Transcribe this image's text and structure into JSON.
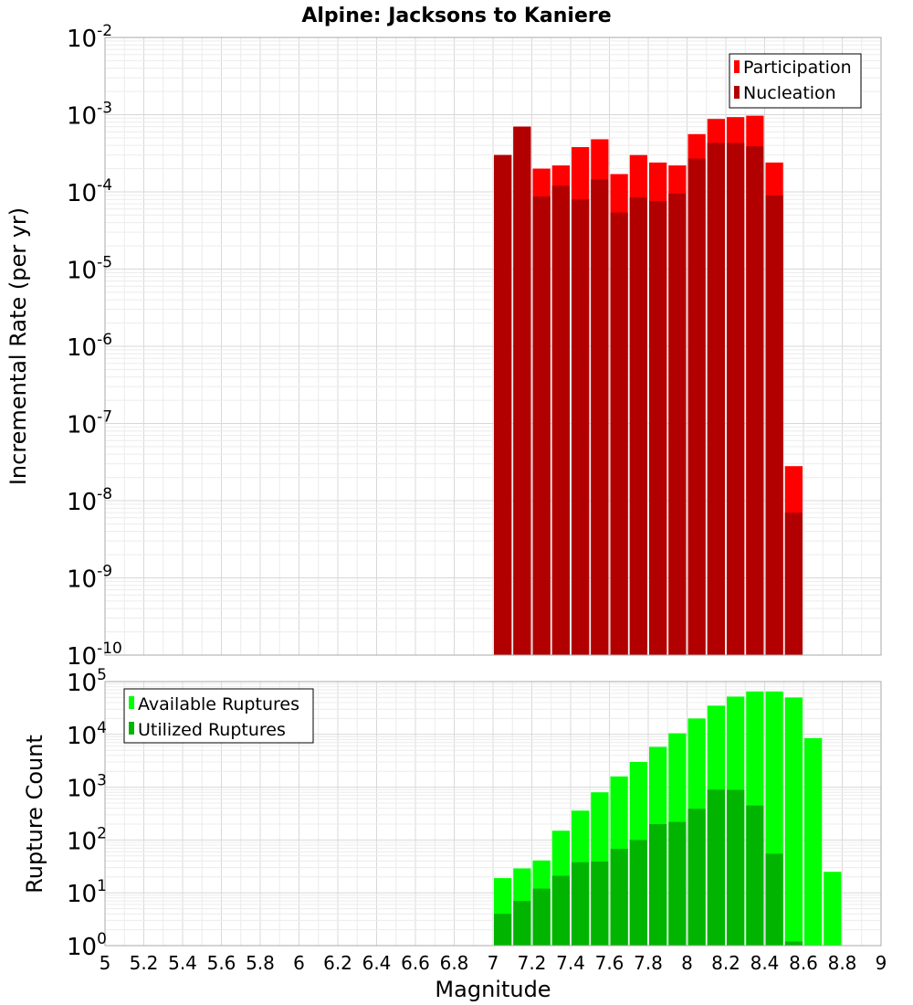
{
  "chart_data": [
    {
      "type": "bar",
      "title": "Alpine: Jacksons to Kaniere",
      "xlabel": "",
      "ylabel": "Incremental Rate (per yr)",
      "xlim": [
        5,
        9
      ],
      "ylim": [
        1e-10,
        0.01
      ],
      "yscale": "log",
      "grid": true,
      "legend_position": "top-right",
      "bin_width": 0.1,
      "x": [
        7.05,
        7.15,
        7.25,
        7.35,
        7.45,
        7.55,
        7.65,
        7.75,
        7.85,
        7.95,
        8.05,
        8.15,
        8.25,
        8.35,
        8.45,
        8.55
      ],
      "series": [
        {
          "name": "Participation",
          "color": "#ff0000",
          "values": [
            0.0003,
            0.0007,
            0.0002,
            0.00022,
            0.00038,
            0.00048,
            0.00017,
            0.0003,
            0.00024,
            0.00022,
            0.00056,
            0.00088,
            0.00093,
            0.00097,
            0.00024,
            2.8e-08
          ]
        },
        {
          "name": "Nucleation",
          "color": "#b20000",
          "values": [
            0.0003,
            0.0007,
            8.7e-05,
            0.00012,
            8e-05,
            0.000145,
            5.4e-05,
            8.5e-05,
            7.6e-05,
            9.5e-05,
            0.00027,
            0.00043,
            0.00043,
            0.00039,
            9e-05,
            7e-09
          ]
        }
      ],
      "yticks": [
        {
          "base": "10",
          "exp": "-2"
        },
        {
          "base": "10",
          "exp": "-3"
        },
        {
          "base": "10",
          "exp": "-4"
        },
        {
          "base": "10",
          "exp": "-5"
        },
        {
          "base": "10",
          "exp": "-6"
        },
        {
          "base": "10",
          "exp": "-7"
        },
        {
          "base": "10",
          "exp": "-8"
        },
        {
          "base": "10",
          "exp": "-9"
        },
        {
          "base": "10",
          "exp": "-10"
        }
      ]
    },
    {
      "type": "bar",
      "title": "",
      "xlabel": "Magnitude",
      "ylabel": "Rupture Count",
      "xlim": [
        5,
        9
      ],
      "ylim": [
        1,
        100000.0
      ],
      "yscale": "log",
      "grid": true,
      "legend_position": "top-left",
      "bin_width": 0.1,
      "x": [
        7.05,
        7.15,
        7.25,
        7.35,
        7.45,
        7.55,
        7.65,
        7.75,
        7.85,
        7.95,
        8.05,
        8.15,
        8.25,
        8.35,
        8.45,
        8.55,
        8.65,
        8.75
      ],
      "series": [
        {
          "name": "Available Ruptures",
          "color": "#00ff00",
          "values": [
            19,
            29,
            41,
            150,
            360,
            800,
            1600,
            3000,
            5800,
            10500,
            20000,
            35000,
            52000,
            65000,
            65000,
            50000,
            8500,
            25
          ]
        },
        {
          "name": "Utilized Ruptures",
          "color": "#00b400",
          "values": [
            4,
            7,
            12,
            21,
            38,
            39,
            68,
            100,
            200,
            220,
            390,
            900,
            890,
            450,
            55,
            1.2,
            0,
            0
          ]
        }
      ],
      "xticks": [
        "5",
        "5.2",
        "5.4",
        "5.6",
        "5.8",
        "6",
        "6.2",
        "6.4",
        "6.6",
        "6.8",
        "7",
        "7.2",
        "7.4",
        "7.6",
        "7.8",
        "8",
        "8.2",
        "8.4",
        "8.6",
        "8.8",
        "9"
      ],
      "yticks": [
        {
          "base": "10",
          "exp": "5"
        },
        {
          "base": "10",
          "exp": "4"
        },
        {
          "base": "10",
          "exp": "3"
        },
        {
          "base": "10",
          "exp": "2"
        },
        {
          "base": "10",
          "exp": "1"
        },
        {
          "base": "10",
          "exp": "0"
        }
      ]
    }
  ]
}
